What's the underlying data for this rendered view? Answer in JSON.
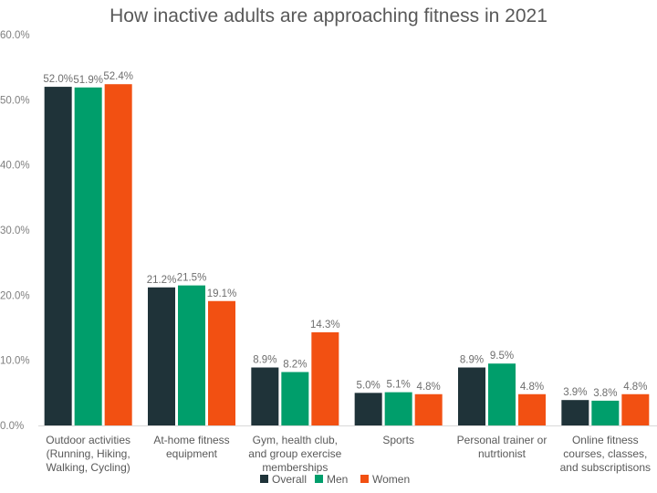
{
  "chart_data": {
    "type": "bar",
    "title": "How inactive adults are approaching fitness in 2021",
    "xlabel": "",
    "ylabel": "",
    "ylim": [
      0,
      60
    ],
    "yticks": [
      "0.0%",
      "10.0%",
      "20.0%",
      "30.0%",
      "40.0%",
      "50.0%",
      "60.0%"
    ],
    "grid": false,
    "legend_position": "bottom",
    "categories": [
      [
        "Outdoor activities",
        "(Running, Hiking,",
        "Walking, Cycling)"
      ],
      [
        "At-home fitness",
        "equipment"
      ],
      [
        "Gym, health club,",
        "and group exercise",
        "memberships"
      ],
      [
        "Sports"
      ],
      [
        "Personal trainer or",
        "nutrtionist"
      ],
      [
        "Online fitness",
        "courses, classes,",
        "and subscriptisons"
      ]
    ],
    "series": [
      {
        "name": "Overall",
        "color": "#1f3339",
        "values": [
          52.0,
          21.2,
          8.9,
          5.0,
          8.9,
          3.9
        ],
        "labels": [
          "52.0%",
          "21.2%",
          "8.9%",
          "5.0%",
          "8.9%",
          "3.9%"
        ]
      },
      {
        "name": "Men",
        "color": "#009e6b",
        "values": [
          51.9,
          21.5,
          8.2,
          5.1,
          9.5,
          3.8
        ],
        "labels": [
          "51.9%",
          "21.5%",
          "8.2%",
          "5.1%",
          "9.5%",
          "3.8%"
        ]
      },
      {
        "name": "Women",
        "color": "#f25012",
        "values": [
          52.4,
          19.1,
          14.3,
          4.8,
          4.8,
          4.8
        ],
        "labels": [
          "52.4%",
          "19.1%",
          "14.3%",
          "4.8%",
          "4.8%",
          "4.8%"
        ]
      }
    ]
  }
}
